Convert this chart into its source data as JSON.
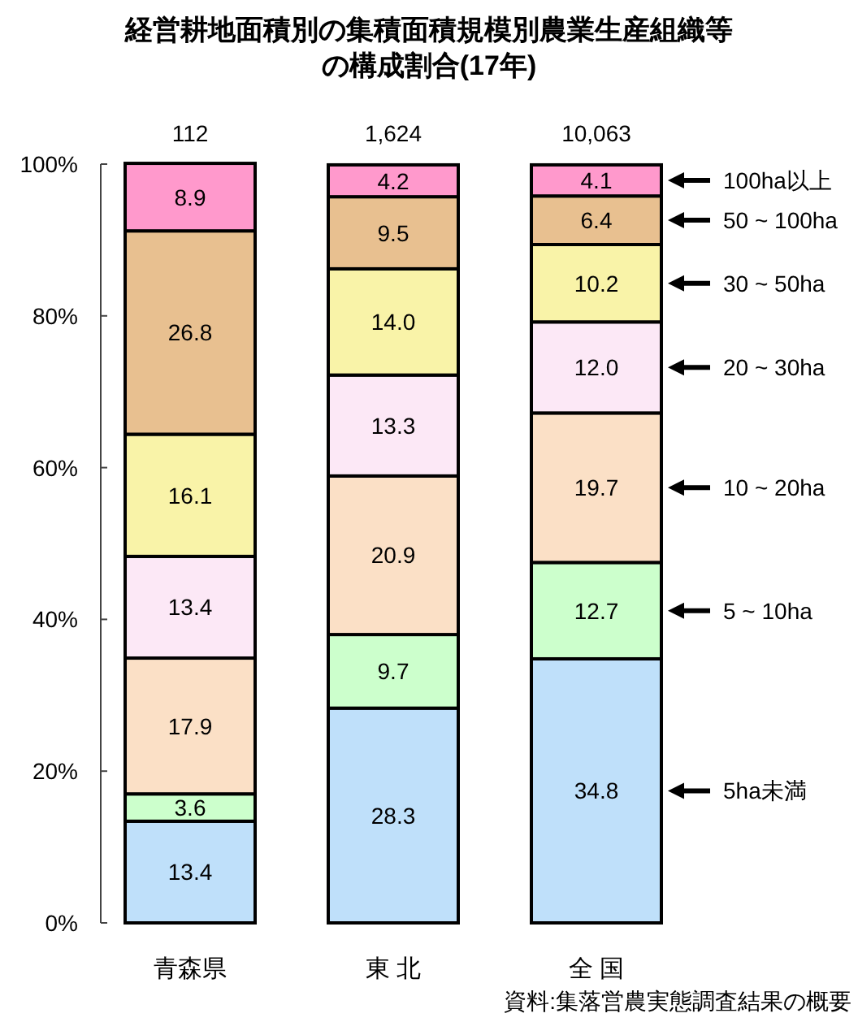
{
  "chart_data": {
    "type": "bar",
    "stacked": true,
    "title": "経営耕地面積別の集積面積規模別農業生産組織等の構成割合(17年)",
    "categories": [
      "青森県",
      "東 北",
      "全 国"
    ],
    "series": [
      {
        "name": "5ha未満",
        "color": "#bfe0fa",
        "values": [
          13.4,
          28.3,
          34.8
        ]
      },
      {
        "name": "5 ~ 10ha",
        "color": "#ccffcc",
        "values": [
          3.6,
          9.7,
          12.7
        ]
      },
      {
        "name": "10 ~ 20ha",
        "color": "#fbe0c6",
        "values": [
          17.9,
          20.9,
          19.7
        ]
      },
      {
        "name": "20 ~ 30ha",
        "color": "#fce8f6",
        "values": [
          13.4,
          13.3,
          12.0
        ],
        "value_labels": [
          "13.4",
          "13.3",
          "12.0"
        ]
      },
      {
        "name": "30 ~ 50ha",
        "color": "#f9f3a8",
        "values": [
          16.1,
          14.0,
          10.2
        ],
        "value_labels": [
          "16.1",
          "14.0",
          "10.2"
        ]
      },
      {
        "name": "50 ~ 100ha",
        "color": "#e8c090",
        "values": [
          26.8,
          9.5,
          6.4
        ]
      },
      {
        "name": "100ha以上",
        "color": "#ff99cc",
        "values": [
          8.9,
          4.2,
          4.1
        ]
      }
    ],
    "data_labels": true,
    "ylim": [
      0,
      100
    ],
    "yticks": [
      {
        "value": 0,
        "label": "0%"
      },
      {
        "value": 20,
        "label": "20%"
      },
      {
        "value": 40,
        "label": "40%"
      },
      {
        "value": 60,
        "label": "60%"
      },
      {
        "value": 80,
        "label": "80%"
      },
      {
        "value": 100,
        "label": "100%"
      }
    ],
    "legend": "right",
    "annotations": [
      {
        "text": "112",
        "x": "青森県",
        "y": 100
      },
      {
        "text": "1,624",
        "x": "東 北",
        "y": 100
      },
      {
        "text": "10,063",
        "x": "全 国",
        "y": 100
      },
      "資料:集落営農実態調査結果の概要"
    ]
  }
}
